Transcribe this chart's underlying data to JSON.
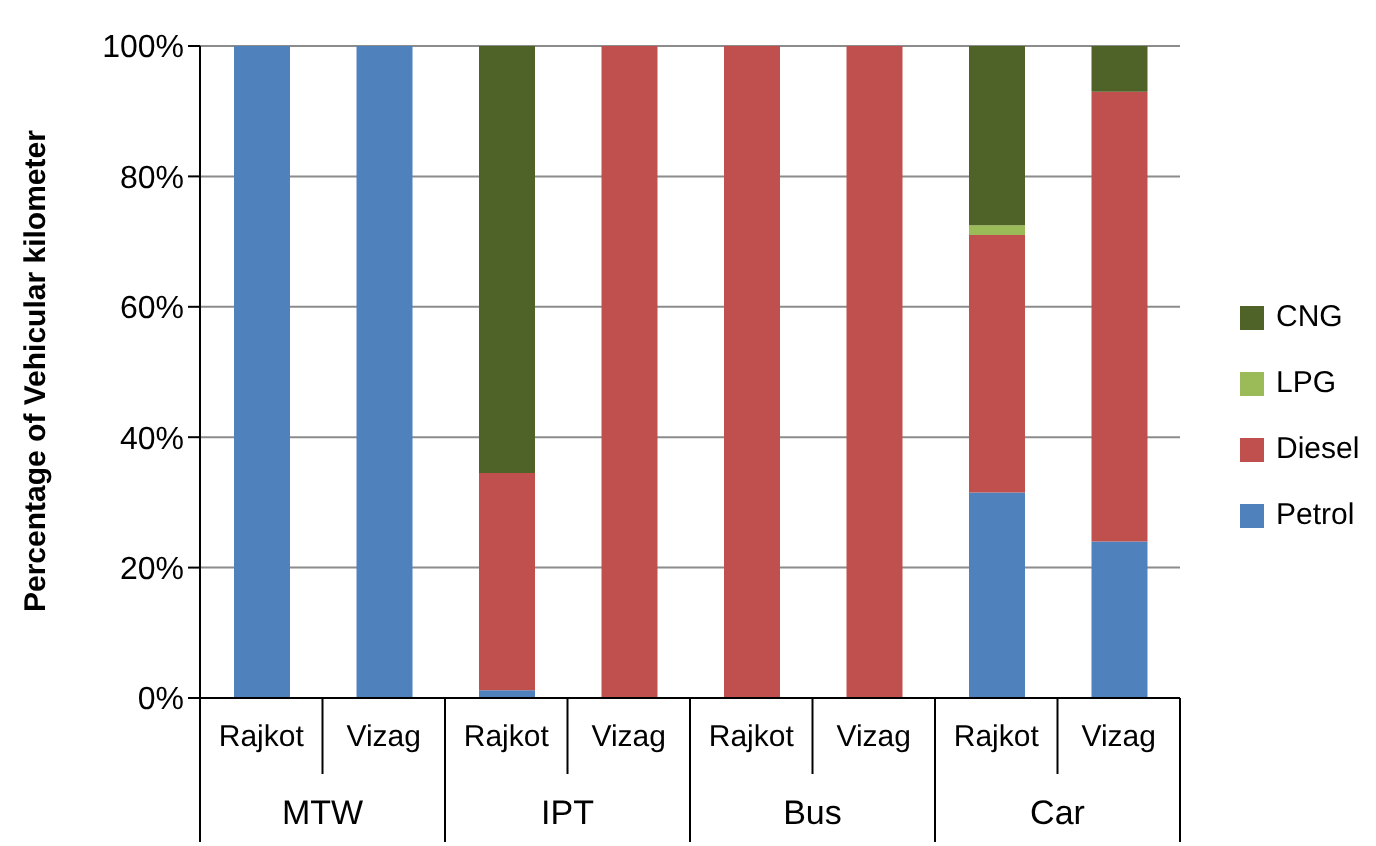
{
  "chart_data": {
    "type": "bar",
    "stacked": true,
    "ylabel": "Percentage of Vehicular kilometer",
    "categories": [
      "Rajkot",
      "Vizag",
      "Rajkot",
      "Vizag",
      "Rajkot",
      "Vizag",
      "Rajkot",
      "Vizag"
    ],
    "annotations": [
      "MTW",
      "IPT",
      "Bus",
      "Car"
    ],
    "series": [
      {
        "name": "Petrol",
        "color": "#4f81bd",
        "values": [
          100,
          100,
          1.2,
          0,
          0,
          0,
          31.5,
          24
        ]
      },
      {
        "name": "Diesel",
        "color": "#c0504d",
        "values": [
          0,
          0,
          33.3,
          100,
          100,
          100,
          39.5,
          69
        ]
      },
      {
        "name": "LPG",
        "color": "#9bbb59",
        "values": [
          0,
          0,
          0,
          0,
          0,
          0,
          1.5,
          0
        ]
      },
      {
        "name": "CNG",
        "color": "#4f6228",
        "values": [
          0,
          0,
          65.5,
          0,
          0,
          0,
          27.5,
          7
        ]
      }
    ],
    "ylim": [
      0,
      100
    ],
    "yticks": [
      {
        "value": 0,
        "label": "0%"
      },
      {
        "value": 20,
        "label": "20%"
      },
      {
        "value": 40,
        "label": "40%"
      },
      {
        "value": 60,
        "label": "60%"
      },
      {
        "value": 80,
        "label": "80%"
      },
      {
        "value": 100,
        "label": "100%"
      }
    ],
    "grid": "y",
    "legend": "right"
  }
}
